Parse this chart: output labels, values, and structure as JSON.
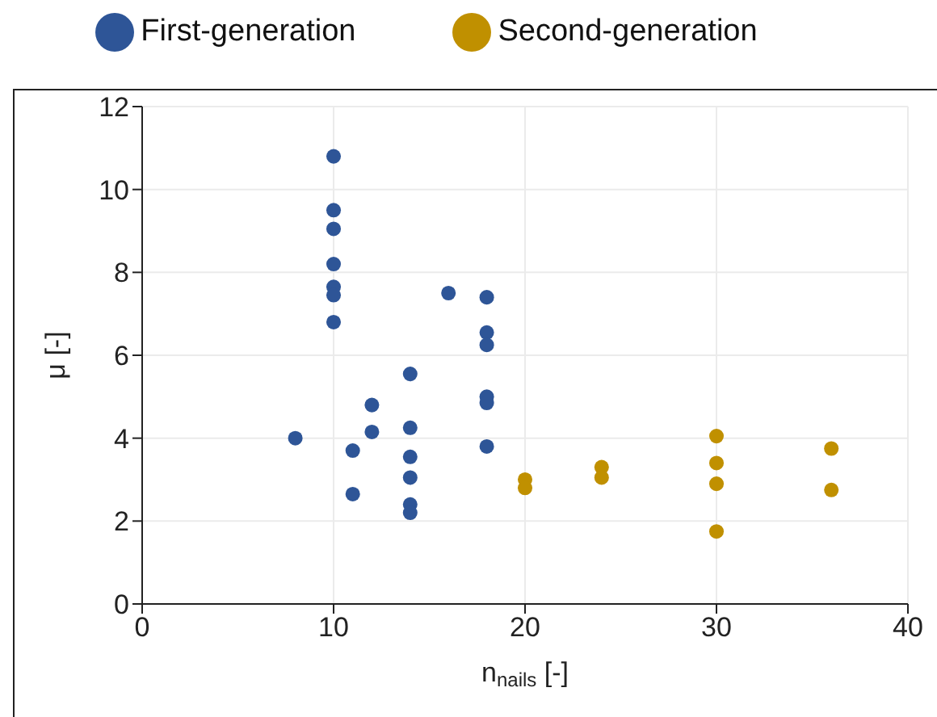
{
  "chart_data": {
    "type": "scatter",
    "xlabel": "n$_{nails}$ [-]",
    "ylabel": "μ [-]",
    "xlim": [
      0,
      40
    ],
    "xticks": [
      0,
      10,
      20,
      30,
      40
    ],
    "ylim": [
      0,
      12
    ],
    "yticks": [
      0,
      2,
      4,
      6,
      8,
      10,
      12
    ],
    "grid": true,
    "legend": "top",
    "marker": "circle",
    "series": [
      {
        "name": "First-generation",
        "color": "#2e5597",
        "x": [
          8,
          10,
          10,
          10,
          10,
          10,
          10,
          10,
          11,
          11,
          12,
          12,
          14,
          14,
          14,
          14,
          14,
          14,
          16,
          18,
          18,
          18,
          18,
          18,
          18
        ],
        "values": [
          4.0,
          10.8,
          9.5,
          9.05,
          8.2,
          7.65,
          7.45,
          6.8,
          3.7,
          2.65,
          4.8,
          4.15,
          5.55,
          4.25,
          3.55,
          3.05,
          2.4,
          2.2,
          7.5,
          7.4,
          6.55,
          6.25,
          5.0,
          4.85,
          3.8
        ]
      },
      {
        "name": "Second-generation",
        "color": "#c09000",
        "x": [
          20,
          20,
          24,
          24,
          30,
          30,
          30,
          30,
          36,
          36
        ],
        "values": [
          3.0,
          2.8,
          3.3,
          3.05,
          4.05,
          3.4,
          2.9,
          1.75,
          3.75,
          2.75
        ]
      }
    ]
  }
}
